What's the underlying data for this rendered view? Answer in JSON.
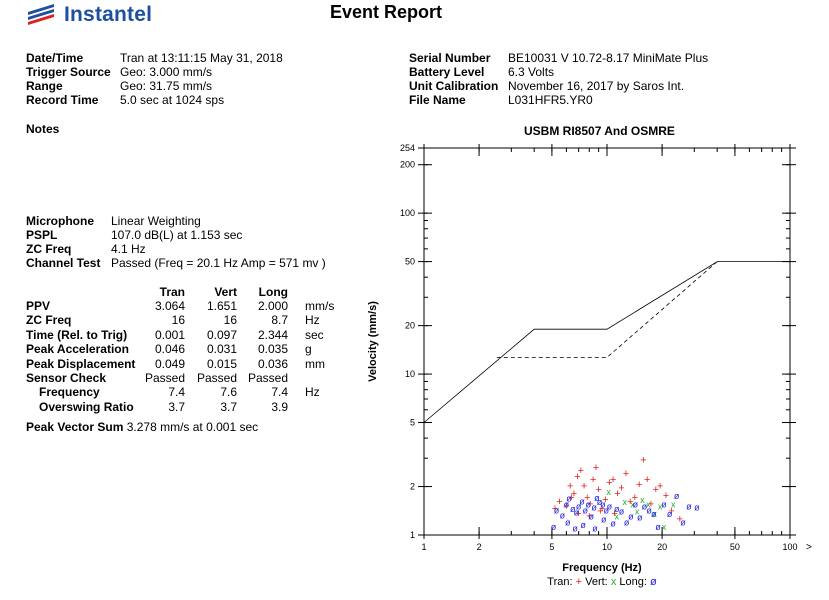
{
  "header": {
    "brand": "Instantel",
    "title": "Event Report"
  },
  "info_left": [
    {
      "label": "Date/Time",
      "value": "Tran at 13:11:15 May 31, 2018"
    },
    {
      "label": "Trigger Source",
      "value": "Geo: 3.000 mm/s"
    },
    {
      "label": "Range",
      "value": "Geo: 31.75 mm/s"
    },
    {
      "label": "Record Time",
      "value": "5.0 sec at 1024 sps"
    }
  ],
  "info_right": [
    {
      "label": "Serial Number",
      "value": "BE10031 V 10.72-8.17 MiniMate Plus"
    },
    {
      "label": "Battery Level",
      "value": "6.3 Volts"
    },
    {
      "label": "Unit Calibration",
      "value": "November 16, 2017 by Saros Int."
    },
    {
      "label": "File Name",
      "value": "L031HFR5.YR0"
    }
  ],
  "notes_label": "Notes",
  "microphone": [
    {
      "label": "Microphone",
      "value": "Linear Weighting"
    },
    {
      "label": "PSPL",
      "value": "107.0 dB(L) at 1.153 sec"
    },
    {
      "label": "ZC Freq",
      "value": "4.1 Hz"
    },
    {
      "label": "Channel Test",
      "value": "Passed (Freq = 20.1 Hz Amp = 571 mv )"
    }
  ],
  "table": {
    "headers": [
      "Tran",
      "Vert",
      "Long"
    ],
    "rows": [
      {
        "label": "PPV",
        "tran": "3.064",
        "vert": "1.651",
        "long": "2.000",
        "unit": "mm/s",
        "indent": false
      },
      {
        "label": "ZC Freq",
        "tran": "16",
        "vert": "16",
        "long": "8.7",
        "unit": "Hz",
        "indent": false
      },
      {
        "label": "Time (Rel. to Trig)",
        "tran": "0.001",
        "vert": "0.097",
        "long": "2.344",
        "unit": "sec",
        "indent": false
      },
      {
        "label": "Peak Acceleration",
        "tran": "0.046",
        "vert": "0.031",
        "long": "0.035",
        "unit": "g",
        "indent": false
      },
      {
        "label": "Peak Displacement",
        "tran": "0.049",
        "vert": "0.015",
        "long": "0.036",
        "unit": "mm",
        "indent": false
      },
      {
        "label": "Sensor Check",
        "tran": "Passed",
        "vert": "Passed",
        "long": "Passed",
        "unit": "",
        "indent": false
      },
      {
        "label": "Frequency",
        "tran": "7.4",
        "vert": "7.6",
        "long": "7.4",
        "unit": "Hz",
        "indent": true
      },
      {
        "label": "Overswing Ratio",
        "tran": "3.7",
        "vert": "3.7",
        "long": "3.9",
        "unit": "",
        "indent": true
      }
    ]
  },
  "peak_vector_sum": {
    "label": "Peak Vector Sum",
    "value": "3.278 mm/s at 0.001 sec"
  },
  "chart_data": {
    "type": "scatter",
    "title": "USBM RI8507 And OSMRE",
    "xlabel": "Frequency (Hz)",
    "ylabel": "Velocity (mm/s)",
    "x_scale": "log",
    "y_scale": "log",
    "xlim": [
      1,
      100
    ],
    "ylim": [
      1,
      254
    ],
    "x_ticks": [
      "1",
      "2",
      "5",
      "10",
      "20",
      "50",
      "100"
    ],
    "x_tick_values": [
      1,
      2,
      5,
      10,
      20,
      50,
      100
    ],
    "y_ticks": [
      "1",
      "2",
      "5",
      "10",
      "20",
      "50",
      "100",
      "200",
      "254"
    ],
    "y_tick_values": [
      1,
      2,
      5,
      10,
      20,
      50,
      100,
      200,
      254
    ],
    "limit_curves": [
      {
        "style": "solid",
        "points": [
          [
            1,
            5
          ],
          [
            4,
            19
          ],
          [
            10,
            19
          ],
          [
            40,
            50
          ],
          [
            100,
            50
          ]
        ]
      },
      {
        "style": "dashed",
        "points": [
          [
            2.5,
            12.7
          ],
          [
            10,
            12.7
          ],
          [
            40,
            50
          ]
        ]
      }
    ],
    "legend": {
      "text": "Tran:",
      "items": [
        {
          "name": "Tran",
          "glyph": "+",
          "color": "#e02020"
        },
        {
          "name": "Vert",
          "glyph": "x",
          "color": "#20b020"
        },
        {
          "name": "Long",
          "glyph": "ø",
          "color": "#2020e0"
        }
      ],
      "labels": [
        "Tran:",
        "Vert:",
        "Long:"
      ]
    },
    "series": [
      {
        "name": "Tran",
        "glyph": "+",
        "color": "#e02020",
        "points": [
          [
            5.5,
            1.6
          ],
          [
            6,
            1.5
          ],
          [
            6.3,
            2.0
          ],
          [
            6.6,
            1.8
          ],
          [
            6.9,
            2.3
          ],
          [
            7.2,
            2.5
          ],
          [
            7.5,
            2.0
          ],
          [
            7.8,
            1.7
          ],
          [
            8.1,
            1.55
          ],
          [
            8.4,
            2.2
          ],
          [
            8.7,
            2.6
          ],
          [
            9.0,
            1.9
          ],
          [
            9.4,
            1.45
          ],
          [
            9.8,
            1.65
          ],
          [
            10.3,
            2.1
          ],
          [
            10.8,
            2.2
          ],
          [
            11.4,
            1.8
          ],
          [
            12,
            1.95
          ],
          [
            12.7,
            2.4
          ],
          [
            13.4,
            1.6
          ],
          [
            14.2,
            1.7
          ],
          [
            15,
            2.05
          ],
          [
            15.8,
            2.9
          ],
          [
            16.6,
            2.2
          ],
          [
            17.4,
            1.55
          ],
          [
            18.5,
            1.9
          ],
          [
            19.5,
            2.0
          ],
          [
            21,
            1.75
          ],
          [
            22.5,
            1.4
          ],
          [
            25,
            1.25
          ],
          [
            7.0,
            1.35
          ],
          [
            8.0,
            1.3
          ],
          [
            9.2,
            1.4
          ],
          [
            11,
            1.35
          ],
          [
            5.2,
            1.45
          ],
          [
            6.4,
            1.7
          ]
        ]
      },
      {
        "name": "Vert",
        "glyph": "x",
        "color": "#20b020",
        "points": [
          [
            10.2,
            1.85
          ],
          [
            12.5,
            1.6
          ],
          [
            13.8,
            1.55
          ],
          [
            15.6,
            1.65
          ],
          [
            16.8,
            1.55
          ],
          [
            19.5,
            1.5
          ],
          [
            20.5,
            1.12
          ],
          [
            23,
            1.55
          ],
          [
            18.2,
            1.35
          ],
          [
            14.6,
            1.4
          ],
          [
            11.3,
            1.3
          ]
        ]
      },
      {
        "name": "Long",
        "glyph": "ø",
        "color": "#2020e0",
        "points": [
          [
            5.3,
            1.42
          ],
          [
            5.7,
            1.32
          ],
          [
            6.0,
            1.55
          ],
          [
            6.2,
            1.68
          ],
          [
            6.5,
            1.45
          ],
          [
            6.8,
            1.38
          ],
          [
            7.0,
            1.5
          ],
          [
            7.3,
            1.62
          ],
          [
            7.6,
            1.42
          ],
          [
            7.9,
            1.55
          ],
          [
            8.2,
            1.3
          ],
          [
            8.5,
            1.48
          ],
          [
            8.8,
            1.7
          ],
          [
            9.1,
            1.6
          ],
          [
            9.5,
            1.55
          ],
          [
            9.9,
            1.42
          ],
          [
            10.3,
            1.5
          ],
          [
            10.8,
            1.18
          ],
          [
            11.3,
            1.45
          ],
          [
            12.0,
            1.4
          ],
          [
            12.8,
            1.2
          ],
          [
            13.5,
            1.3
          ],
          [
            14.3,
            1.55
          ],
          [
            15.1,
            1.28
          ],
          [
            16.0,
            1.5
          ],
          [
            17.0,
            1.42
          ],
          [
            18.0,
            1.35
          ],
          [
            19.0,
            1.12
          ],
          [
            20.5,
            1.55
          ],
          [
            22.0,
            1.35
          ],
          [
            24.0,
            1.75
          ],
          [
            26.0,
            1.2
          ],
          [
            28.0,
            1.5
          ],
          [
            31.0,
            1.48
          ],
          [
            5.1,
            1.12
          ],
          [
            6.1,
            1.2
          ],
          [
            6.7,
            1.1
          ],
          [
            7.4,
            1.15
          ],
          [
            8.6,
            1.1
          ],
          [
            9.6,
            1.25
          ]
        ]
      }
    ]
  }
}
